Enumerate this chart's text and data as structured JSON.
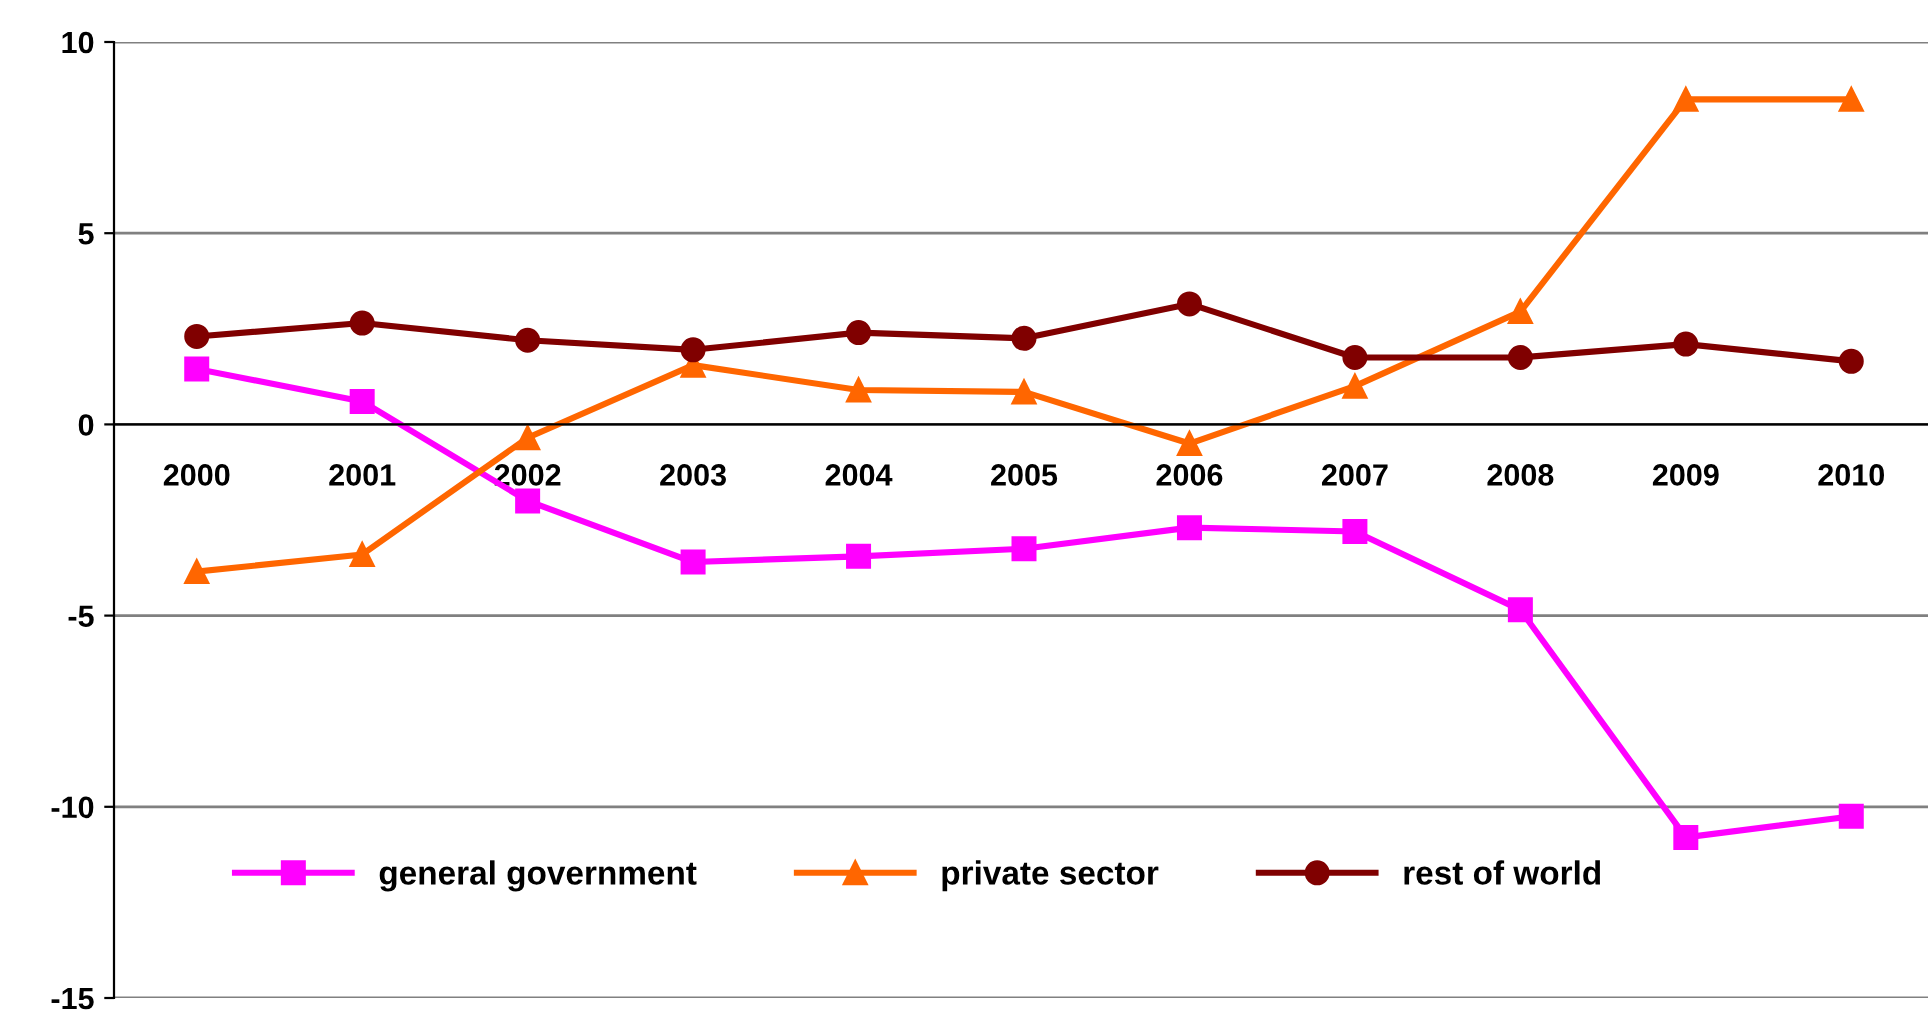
{
  "chart_data": {
    "type": "line",
    "categories": [
      "2000",
      "2001",
      "2002",
      "2003",
      "2004",
      "2005",
      "2006",
      "2007",
      "2008",
      "2009",
      "2010"
    ],
    "series": [
      {
        "name": "general government",
        "color": "#ff00ff",
        "marker": "square",
        "values": [
          1.45,
          0.6,
          -2.0,
          -3.6,
          -3.45,
          -3.25,
          -2.7,
          -2.8,
          -4.85,
          -10.8,
          -10.25
        ]
      },
      {
        "name": "private sector",
        "color": "#ff6600",
        "marker": "triangle",
        "values": [
          -3.85,
          -3.4,
          -0.35,
          1.55,
          0.9,
          0.85,
          -0.5,
          1.0,
          2.95,
          8.5,
          8.5
        ]
      },
      {
        "name": "rest of world",
        "color": "#800000",
        "marker": "circle",
        "values": [
          2.3,
          2.65,
          2.2,
          1.95,
          2.4,
          2.25,
          3.15,
          1.75,
          1.75,
          2.1,
          1.65
        ]
      }
    ],
    "ylim": [
      -15,
      10
    ],
    "yticks": [
      -15,
      -10,
      -5,
      0,
      5,
      10
    ],
    "grid": "y",
    "legend": "bottom left"
  }
}
